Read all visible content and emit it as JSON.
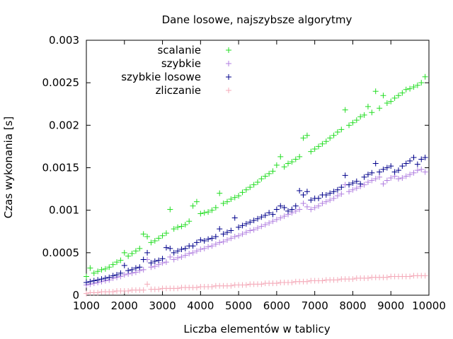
{
  "chart_data": {
    "type": "scatter",
    "title": "Dane losowe, najszybsze algorytmy",
    "xlabel": "Liczba elementów w tablicy",
    "ylabel": "Czas wykonania [s]",
    "xlim": [
      1000,
      10000
    ],
    "ylim": [
      0,
      0.003
    ],
    "x_ticks": [
      1000,
      2000,
      3000,
      4000,
      5000,
      6000,
      7000,
      8000,
      9000,
      10000
    ],
    "x_tick_labels": [
      "1000",
      "2000",
      "3000",
      "4000",
      "5000",
      "6000",
      "7000",
      "8000",
      "9000",
      "10000"
    ],
    "y_ticks": [
      0,
      0.0005,
      0.001,
      0.0015,
      0.002,
      0.0025,
      0.003
    ],
    "y_tick_labels": [
      "0",
      "0.0005",
      "0.001",
      "0.0015",
      "0.002",
      "0.0025",
      "0.003"
    ],
    "grid": false,
    "legend_position": "top-left",
    "marker": "plus",
    "series": [
      {
        "name": "scalanie",
        "color": "#22dd22",
        "x": [
          1000,
          1100,
          1200,
          1300,
          1400,
          1500,
          1600,
          1700,
          1800,
          1900,
          2000,
          2100,
          2200,
          2300,
          2400,
          2500,
          2600,
          2700,
          2800,
          2900,
          3000,
          3100,
          3200,
          3300,
          3400,
          3500,
          3600,
          3700,
          3800,
          3900,
          4000,
          4100,
          4200,
          4300,
          4400,
          4500,
          4600,
          4700,
          4800,
          4900,
          5000,
          5100,
          5200,
          5300,
          5400,
          5500,
          5600,
          5700,
          5800,
          5900,
          6000,
          6100,
          6200,
          6300,
          6400,
          6500,
          6600,
          6700,
          6800,
          6900,
          7000,
          7100,
          7200,
          7300,
          7400,
          7500,
          7600,
          7700,
          7800,
          7900,
          8000,
          8100,
          8200,
          8300,
          8400,
          8500,
          8600,
          8700,
          8800,
          8900,
          9000,
          9100,
          9200,
          9300,
          9400,
          9500,
          9600,
          9700,
          9800,
          9900
        ],
        "y": [
          0.00022,
          0.00032,
          0.00026,
          0.00028,
          0.0003,
          0.00031,
          0.00033,
          0.00036,
          0.00039,
          0.00041,
          0.0005,
          0.00046,
          0.00049,
          0.00052,
          0.00055,
          0.00072,
          0.00069,
          0.00062,
          0.00064,
          0.00067,
          0.0007,
          0.00073,
          0.00101,
          0.00078,
          0.0008,
          0.00081,
          0.00083,
          0.00087,
          0.00105,
          0.0011,
          0.00096,
          0.00097,
          0.00098,
          0.001,
          0.00103,
          0.0012,
          0.00108,
          0.0011,
          0.00113,
          0.00115,
          0.00117,
          0.00121,
          0.00124,
          0.00127,
          0.0013,
          0.00133,
          0.00137,
          0.0014,
          0.00143,
          0.00146,
          0.00153,
          0.00163,
          0.00151,
          0.00155,
          0.00157,
          0.0016,
          0.00163,
          0.00185,
          0.00188,
          0.00169,
          0.00172,
          0.00175,
          0.00178,
          0.00181,
          0.00185,
          0.00188,
          0.00192,
          0.00195,
          0.00218,
          0.002,
          0.00203,
          0.00206,
          0.0021,
          0.00212,
          0.00222,
          0.00215,
          0.0024,
          0.0022,
          0.00235,
          0.00226,
          0.00228,
          0.00232,
          0.00235,
          0.00238,
          0.00242,
          0.00243,
          0.00245,
          0.00247,
          0.0025,
          0.00257
        ]
      },
      {
        "name": "szybkie",
        "color": "#b07ee0",
        "x": [
          1000,
          1100,
          1200,
          1300,
          1400,
          1500,
          1600,
          1700,
          1800,
          1900,
          2000,
          2100,
          2200,
          2300,
          2400,
          2500,
          2600,
          2700,
          2800,
          2900,
          3000,
          3100,
          3200,
          3300,
          3400,
          3500,
          3600,
          3700,
          3800,
          3900,
          4000,
          4100,
          4200,
          4300,
          4400,
          4500,
          4600,
          4700,
          4800,
          4900,
          5000,
          5100,
          5200,
          5300,
          5400,
          5500,
          5600,
          5700,
          5800,
          5900,
          6000,
          6100,
          6200,
          6300,
          6400,
          6500,
          6600,
          6700,
          6800,
          6900,
          7000,
          7100,
          7200,
          7300,
          7400,
          7500,
          7600,
          7700,
          7800,
          7900,
          8000,
          8100,
          8200,
          8300,
          8400,
          8500,
          8600,
          8700,
          8800,
          8900,
          9000,
          9100,
          9200,
          9300,
          9400,
          9500,
          9600,
          9700,
          9800,
          9900
        ],
        "y": [
          0.00012,
          0.00013,
          0.00014,
          0.00015,
          0.00016,
          0.00017,
          0.00018,
          0.0002,
          0.00021,
          0.00022,
          0.00024,
          0.00025,
          0.00026,
          0.00027,
          0.00029,
          0.0003,
          0.00042,
          0.00033,
          0.00034,
          0.00036,
          0.00038,
          0.00039,
          0.00045,
          0.00042,
          0.00044,
          0.00045,
          0.00047,
          0.00049,
          0.0005,
          0.00052,
          0.00054,
          0.00055,
          0.00057,
          0.00058,
          0.0006,
          0.00062,
          0.00063,
          0.00065,
          0.00067,
          0.00069,
          0.0007,
          0.00072,
          0.00074,
          0.00076,
          0.00077,
          0.00079,
          0.00081,
          0.00083,
          0.00085,
          0.00087,
          0.00089,
          0.00091,
          0.00093,
          0.00095,
          0.00097,
          0.00099,
          0.00101,
          0.00108,
          0.00104,
          0.00101,
          0.00103,
          0.00105,
          0.00108,
          0.0011,
          0.00112,
          0.00114,
          0.00117,
          0.00119,
          0.0013,
          0.00122,
          0.00124,
          0.00126,
          0.00128,
          0.0013,
          0.00133,
          0.00135,
          0.00137,
          0.00139,
          0.00131,
          0.00135,
          0.00138,
          0.0014,
          0.00137,
          0.00138,
          0.0014,
          0.00142,
          0.00144,
          0.00147,
          0.00148,
          0.00145
        ]
      },
      {
        "name": "szybkie losowe",
        "color": "#00008b",
        "x": [
          1000,
          1100,
          1200,
          1300,
          1400,
          1500,
          1600,
          1700,
          1800,
          1900,
          2000,
          2100,
          2200,
          2300,
          2400,
          2500,
          2600,
          2700,
          2800,
          2900,
          3000,
          3100,
          3200,
          3300,
          3400,
          3500,
          3600,
          3700,
          3800,
          3900,
          4000,
          4100,
          4200,
          4300,
          4400,
          4500,
          4600,
          4700,
          4800,
          4900,
          5000,
          5100,
          5200,
          5300,
          5400,
          5500,
          5600,
          5700,
          5800,
          5900,
          6000,
          6100,
          6200,
          6300,
          6400,
          6500,
          6600,
          6700,
          6800,
          6900,
          7000,
          7100,
          7200,
          7300,
          7400,
          7500,
          7600,
          7700,
          7800,
          7900,
          8000,
          8100,
          8200,
          8300,
          8400,
          8500,
          8600,
          8700,
          8800,
          8900,
          9000,
          9100,
          9200,
          9300,
          9400,
          9500,
          9600,
          9700,
          9800,
          9900
        ],
        "y": [
          0.00015,
          0.00016,
          0.00017,
          0.00018,
          0.00019,
          0.0002,
          0.00021,
          0.00023,
          0.00024,
          0.00026,
          0.00035,
          0.00029,
          0.0003,
          0.00032,
          0.00033,
          0.00042,
          0.0005,
          0.00038,
          0.0004,
          0.00041,
          0.00043,
          0.00056,
          0.00055,
          0.0005,
          0.00052,
          0.00054,
          0.00055,
          0.00058,
          0.00058,
          0.00062,
          0.00065,
          0.00064,
          0.00066,
          0.00067,
          0.00069,
          0.00078,
          0.00072,
          0.00074,
          0.00076,
          0.00091,
          0.0008,
          0.00082,
          0.00084,
          0.00086,
          0.00088,
          0.0009,
          0.00092,
          0.00094,
          0.00097,
          0.00095,
          0.00101,
          0.00105,
          0.00103,
          0.00099,
          0.00101,
          0.00105,
          0.00123,
          0.00118,
          0.00122,
          0.00112,
          0.00114,
          0.00114,
          0.00118,
          0.00118,
          0.0012,
          0.00122,
          0.00124,
          0.00127,
          0.00141,
          0.0013,
          0.00132,
          0.00134,
          0.00131,
          0.00139,
          0.00142,
          0.00144,
          0.00155,
          0.00145,
          0.00148,
          0.0015,
          0.00152,
          0.00145,
          0.00147,
          0.00152,
          0.00155,
          0.00158,
          0.00162,
          0.00154,
          0.0016,
          0.00162
        ]
      },
      {
        "name": "zliczanie",
        "color": "#f4a9b8",
        "x": [
          1000,
          1100,
          1200,
          1300,
          1400,
          1500,
          1600,
          1700,
          1800,
          1900,
          2000,
          2100,
          2200,
          2300,
          2400,
          2500,
          2600,
          2700,
          2800,
          2900,
          3000,
          3100,
          3200,
          3300,
          3400,
          3500,
          3600,
          3700,
          3800,
          3900,
          4000,
          4100,
          4200,
          4300,
          4400,
          4500,
          4600,
          4700,
          4800,
          4900,
          5000,
          5100,
          5200,
          5300,
          5400,
          5500,
          5600,
          5700,
          5800,
          5900,
          6000,
          6100,
          6200,
          6300,
          6400,
          6500,
          6600,
          6700,
          6800,
          6900,
          7000,
          7100,
          7200,
          7300,
          7400,
          7500,
          7600,
          7700,
          7800,
          7900,
          8000,
          8100,
          8200,
          8300,
          8400,
          8500,
          8600,
          8700,
          8800,
          8900,
          9000,
          9100,
          9200,
          9300,
          9400,
          9500,
          9600,
          9700,
          9800,
          9900
        ],
        "y": [
          2e-05,
          3e-05,
          3e-05,
          3e-05,
          4e-05,
          4e-05,
          4e-05,
          4e-05,
          5e-05,
          5e-05,
          5e-05,
          5e-05,
          6e-05,
          6e-05,
          6e-05,
          6e-05,
          0.00013,
          7e-05,
          7e-05,
          7e-05,
          8e-05,
          8e-05,
          8e-05,
          8e-05,
          8e-05,
          9e-05,
          9e-05,
          9e-05,
          9e-05,
          9e-05,
          0.0001,
          0.0001,
          0.0001,
          0.0001,
          0.00011,
          0.00011,
          0.00011,
          0.00011,
          0.00011,
          0.00012,
          0.00012,
          0.00012,
          0.00012,
          0.00013,
          0.00013,
          0.00013,
          0.00013,
          0.00014,
          0.00014,
          0.00014,
          0.00014,
          0.00015,
          0.00015,
          0.00015,
          0.00015,
          0.00016,
          0.00016,
          0.00016,
          0.00016,
          0.00017,
          0.00017,
          0.00017,
          0.00017,
          0.00018,
          0.00018,
          0.00018,
          0.00018,
          0.00019,
          0.00019,
          0.00019,
          0.00019,
          0.0002,
          0.0002,
          0.0002,
          0.0002,
          0.00021,
          0.00021,
          0.00021,
          0.00021,
          0.00021,
          0.00022,
          0.00022,
          0.00022,
          0.00022,
          0.00022,
          0.00022,
          0.00023,
          0.00023,
          0.00023,
          0.00023
        ]
      }
    ]
  }
}
